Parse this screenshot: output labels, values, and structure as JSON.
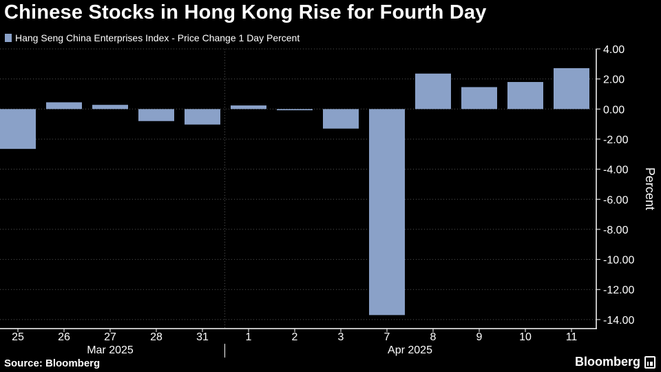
{
  "header": {
    "title": "Chinese Stocks in Hong Kong Rise for Fourth Day"
  },
  "legend": {
    "label": "Hang Seng China Enterprises Index - Price Change 1 Day Percent"
  },
  "footer": {
    "source": "Source: Bloomberg",
    "brand": "Bloomberg"
  },
  "colors": {
    "bar": "#8aa1c8",
    "background": "#000000",
    "grid": "#555555",
    "text": "#ffffff"
  },
  "chart_data": {
    "type": "bar",
    "categories": [
      "25",
      "26",
      "27",
      "28",
      "31",
      "1",
      "2",
      "3",
      "7",
      "8",
      "9",
      "10",
      "11"
    ],
    "month_labels": [
      {
        "label": "Mar 2025",
        "first_index": 0,
        "last_index": 4
      },
      {
        "label": "Apr 2025",
        "first_index": 5,
        "last_index": 12
      }
    ],
    "series": [
      {
        "name": "Hang Seng China Enterprises Index - Price Change 1 Day Percent",
        "values": [
          -2.65,
          0.45,
          0.28,
          -0.8,
          -1.03,
          0.24,
          -0.08,
          -1.3,
          -13.7,
          2.36,
          1.46,
          1.8,
          2.72
        ]
      }
    ],
    "ylabel": "Percent",
    "ylim": [
      -14.6,
      4.0
    ],
    "yticks": [
      4,
      2,
      0,
      -2,
      -4,
      -6,
      -8,
      -10,
      -12,
      -14
    ],
    "ytick_labels": [
      "4.00",
      "2.00",
      "0.00",
      "-2.00",
      "-4.00",
      "-6.00",
      "-8.00",
      "-10.00",
      "-12.00",
      "-14.00"
    ],
    "y_axis_side": "right",
    "grid": true
  }
}
